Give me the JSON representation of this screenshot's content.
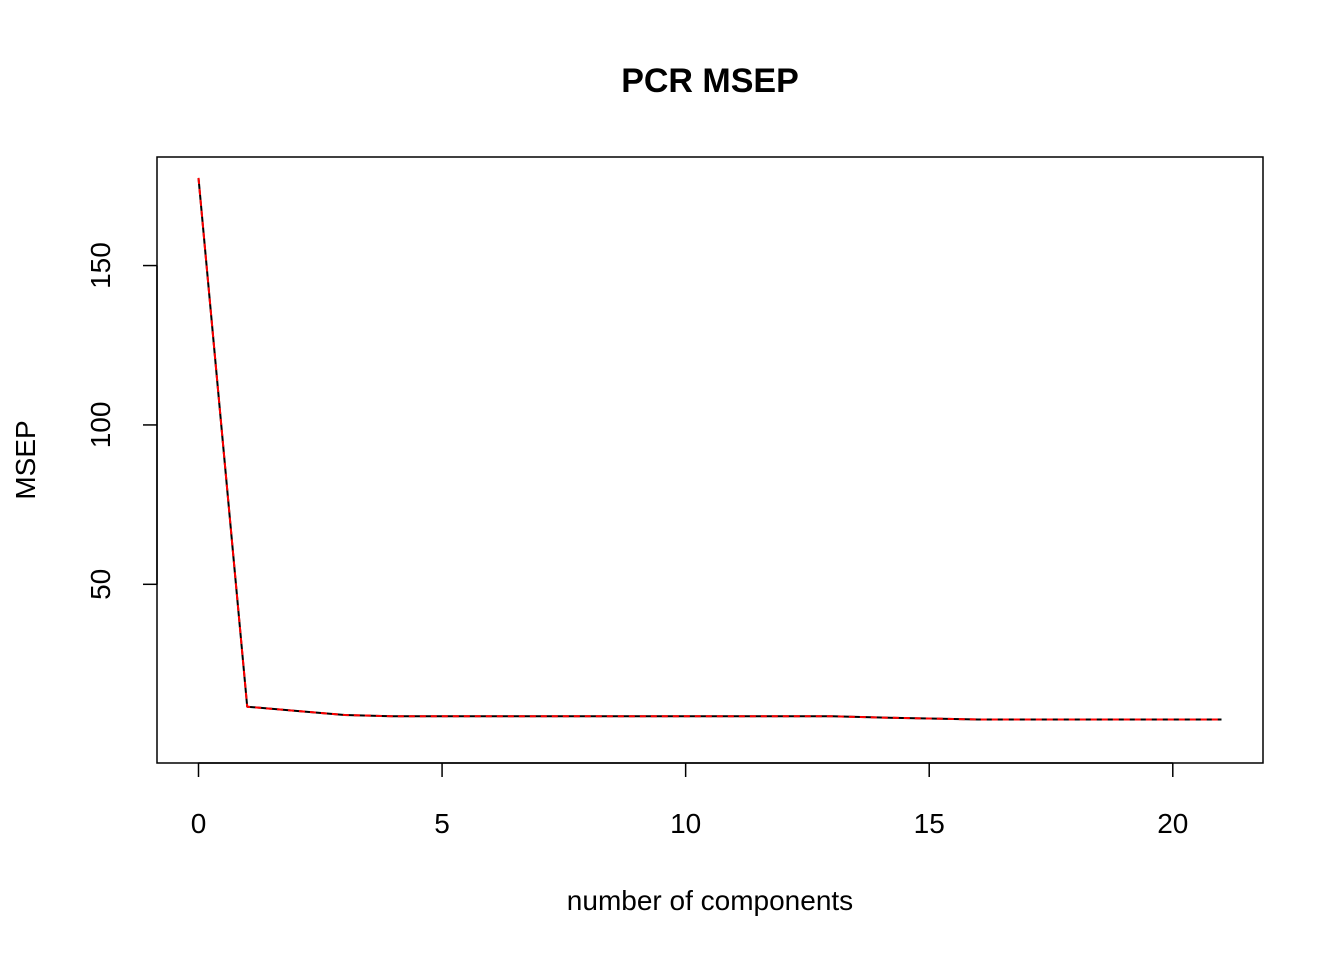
{
  "chart_data": {
    "type": "line",
    "title": "PCR MSEP",
    "xlabel": "number of components",
    "ylabel": "MSEP",
    "xlim": [
      0,
      21
    ],
    "ylim": [
      1,
      177
    ],
    "x_ticks": [
      0,
      5,
      10,
      15,
      20
    ],
    "y_ticks": [
      50,
      100,
      150
    ],
    "grid": false,
    "legend": "none",
    "series": [
      {
        "color": "#000000",
        "line_style": "solid",
        "x": [
          0,
          1,
          2,
          3,
          4,
          5,
          6,
          7,
          8,
          9,
          10,
          11,
          12,
          13,
          14,
          15,
          16,
          17,
          18,
          19,
          20,
          21
        ],
        "values": [
          177.5,
          11.6,
          10.3,
          9.0,
          8.6,
          8.6,
          8.6,
          8.6,
          8.6,
          8.6,
          8.6,
          8.6,
          8.6,
          8.6,
          8.2,
          7.9,
          7.6,
          7.6,
          7.6,
          7.6,
          7.6,
          7.6
        ]
      },
      {
        "color": "#ff0000",
        "line_style": "dashed",
        "x": [
          0,
          1,
          2,
          3,
          4,
          5,
          6,
          7,
          8,
          9,
          10,
          11,
          12,
          13,
          14,
          15,
          16,
          17,
          18,
          19,
          20,
          21
        ],
        "values": [
          177.5,
          11.6,
          10.3,
          9.0,
          8.6,
          8.6,
          8.6,
          8.6,
          8.6,
          8.6,
          8.6,
          8.6,
          8.6,
          8.6,
          8.2,
          7.9,
          7.6,
          7.6,
          7.6,
          7.6,
          7.6,
          7.6
        ]
      }
    ]
  }
}
